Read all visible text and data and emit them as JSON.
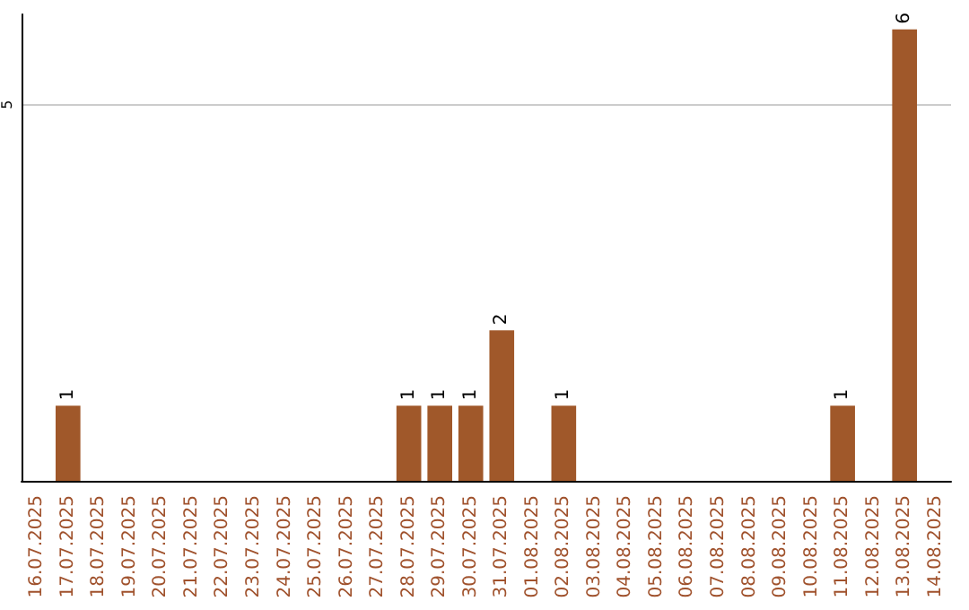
{
  "chart_data": {
    "type": "bar",
    "categories": [
      "16.07.2025",
      "17.07.2025",
      "18.07.2025",
      "19.07.2025",
      "20.07.2025",
      "21.07.2025",
      "22.07.2025",
      "23.07.2025",
      "24.07.2025",
      "25.07.2025",
      "26.07.2025",
      "27.07.2025",
      "28.07.2025",
      "29.07.2025",
      "30.07.2025",
      "31.07.2025",
      "01.08.2025",
      "02.08.2025",
      "03.08.2025",
      "04.08.2025",
      "05.08.2025",
      "06.08.2025",
      "07.08.2025",
      "08.08.2025",
      "09.08.2025",
      "10.08.2025",
      "11.08.2025",
      "12.08.2025",
      "13.08.2025",
      "14.08.2025"
    ],
    "values": [
      0,
      1,
      0,
      0,
      0,
      0,
      0,
      0,
      0,
      0,
      0,
      0,
      1,
      1,
      1,
      2,
      0,
      1,
      0,
      0,
      0,
      0,
      0,
      0,
      0,
      0,
      1,
      0,
      6,
      0
    ],
    "value_labels": [
      null,
      "1",
      null,
      null,
      null,
      null,
      null,
      null,
      null,
      null,
      null,
      null,
      "1",
      "1",
      "1",
      "2",
      null,
      "1",
      null,
      null,
      null,
      null,
      null,
      null,
      null,
      null,
      "1",
      null,
      "6",
      null
    ],
    "color": "#a0582a",
    "ylim": [
      0,
      6.2
    ],
    "yticks": [
      5
    ],
    "grid": "y"
  }
}
